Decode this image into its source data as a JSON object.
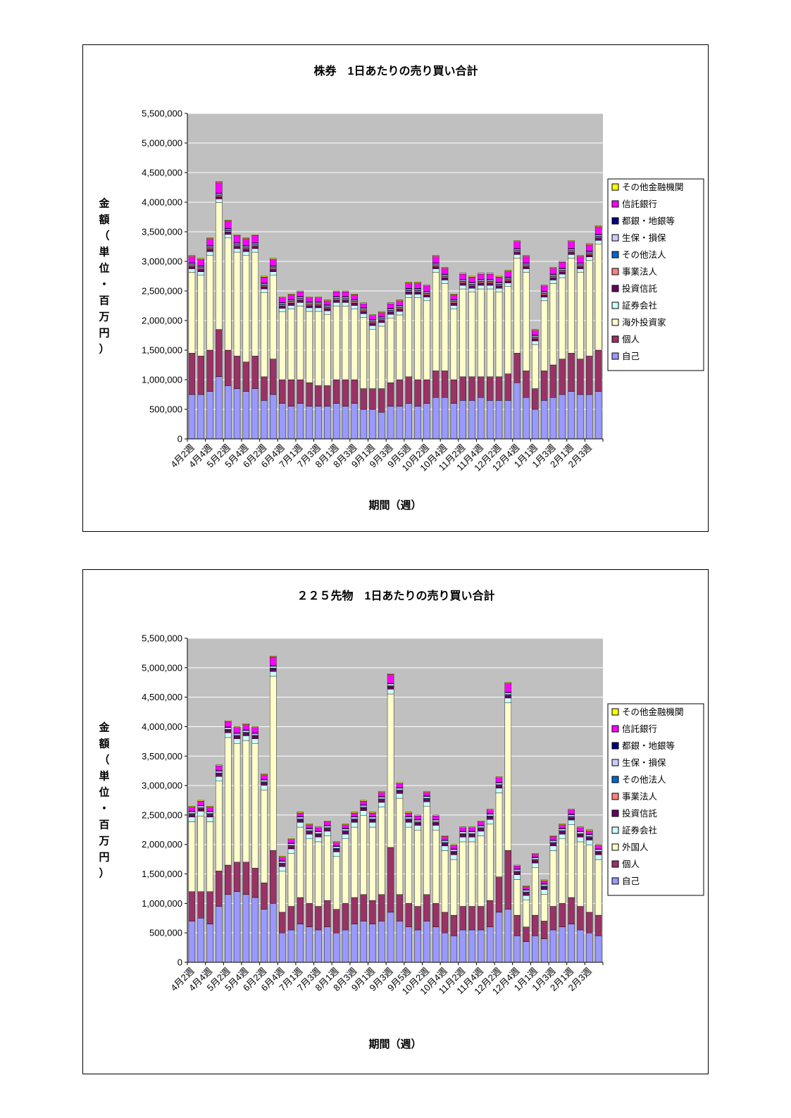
{
  "page": {
    "background": "#FFFFFF"
  },
  "chart_data": [
    {
      "type": "stacked-bar",
      "title": "株券　1日あたりの売り買い合計",
      "y_axis_title": "金額（単位・百万円）",
      "x_axis_title": "期間（週）",
      "y_min": 0,
      "y_max": 5500000,
      "y_step": 500000,
      "y_tick_labels": [
        "0",
        "500,000",
        "1,000,000",
        "1,500,000",
        "2,000,000",
        "2,500,000",
        "3,000,000",
        "3,500,000",
        "4,000,000",
        "4,500,000",
        "5,000,000",
        "5,500,000"
      ],
      "plot_background": "#C0C0C0",
      "gridline_color": "#FFFFFF",
      "legend_position": "right",
      "categories": [
        "4月2週",
        "",
        "4月4週",
        "",
        "5月2週",
        "",
        "5月4週",
        "",
        "6月2週",
        "",
        "6月4週",
        "",
        "7月1週",
        "",
        "7月3週",
        "",
        "8月1週",
        "",
        "8月3週",
        "",
        "9月1週",
        "",
        "9月3週",
        "",
        "9月5週",
        "",
        "10月2週",
        "",
        "10月4週",
        "",
        "11月2週",
        "",
        "11月4週",
        "",
        "12月2週",
        "",
        "12月4週",
        "",
        "1月1週",
        "",
        "1月3週",
        "",
        "2月1週",
        "",
        "2月3週",
        ""
      ],
      "series": [
        {
          "name": "自己",
          "color": "#9999FF",
          "values": [
            750000,
            750000,
            800000,
            1050000,
            900000,
            850000,
            800000,
            850000,
            650000,
            750000,
            600000,
            550000,
            600000,
            550000,
            550000,
            550000,
            600000,
            550000,
            600000,
            500000,
            500000,
            450000,
            550000,
            550000,
            600000,
            550000,
            600000,
            700000,
            700000,
            600000,
            650000,
            650000,
            700000,
            650000,
            650000,
            650000,
            950000,
            700000,
            500000,
            650000,
            700000,
            750000,
            800000,
            750000,
            750000,
            800000
          ]
        },
        {
          "name": "個人",
          "color": "#993366",
          "values": [
            700000,
            650000,
            700000,
            800000,
            600000,
            550000,
            500000,
            550000,
            400000,
            600000,
            400000,
            450000,
            400000,
            400000,
            350000,
            350000,
            400000,
            450000,
            400000,
            350000,
            350000,
            400000,
            400000,
            450000,
            450000,
            450000,
            400000,
            450000,
            450000,
            400000,
            400000,
            400000,
            350000,
            400000,
            400000,
            450000,
            500000,
            450000,
            350000,
            500000,
            550000,
            600000,
            650000,
            600000,
            650000,
            700000
          ]
        },
        {
          "name": "海外投資家",
          "color": "#FFFFCC",
          "values": [
            1365000,
            1365000,
            1605000,
            2145000,
            1895000,
            1755000,
            1805000,
            1755000,
            1425000,
            1415000,
            1145000,
            1195000,
            1245000,
            1205000,
            1255000,
            1205000,
            1245000,
            1245000,
            1195000,
            1205000,
            1005000,
            1055000,
            1095000,
            1095000,
            1335000,
            1385000,
            1335000,
            1665000,
            1475000,
            1195000,
            1485000,
            1435000,
            1485000,
            1485000,
            1435000,
            1475000,
            1605000,
            1665000,
            745000,
            1185000,
            1375000,
            1375000,
            1605000,
            1465000,
            1615000,
            1795000
          ]
        },
        {
          "name": "証券会社",
          "color": "#CCFFFF",
          "values": 60000
        },
        {
          "name": "投資信託",
          "color": "#660066",
          "values": 40000
        },
        {
          "name": "事業法人",
          "color": "#FF8080",
          "values": 20000
        },
        {
          "name": "その他法人",
          "color": "#0066CC",
          "values": 10000
        },
        {
          "name": "生保・損保",
          "color": "#CCCCFF",
          "values": 20000
        },
        {
          "name": "都銀・地銀等",
          "color": "#000080",
          "values": 10000
        },
        {
          "name": "信託銀行",
          "color": "#FF00FF",
          "values": [
            110000,
            110000,
            120000,
            180000,
            130000,
            120000,
            120000,
            120000,
            100000,
            110000,
            80000,
            80000,
            80000,
            70000,
            70000,
            70000,
            80000,
            80000,
            80000,
            70000,
            70000,
            70000,
            80000,
            80000,
            90000,
            90000,
            90000,
            110000,
            100000,
            80000,
            90000,
            90000,
            90000,
            90000,
            90000,
            100000,
            120000,
            110000,
            80000,
            90000,
            100000,
            100000,
            120000,
            110000,
            110000,
            130000
          ]
        },
        {
          "name": "その他金融機関",
          "color": "#FFFF00",
          "values": 15000
        }
      ]
    },
    {
      "type": "stacked-bar",
      "title": "２２５先物　1日あたりの売り買い合計",
      "y_axis_title": "金額（単位・百万円）",
      "x_axis_title": "期間（週）",
      "y_min": 0,
      "y_max": 5500000,
      "y_step": 500000,
      "y_tick_labels": [
        "0",
        "500,000",
        "1,000,000",
        "1,500,000",
        "2,000,000",
        "2,500,000",
        "3,000,000",
        "3,500,000",
        "4,000,000",
        "4,500,000",
        "5,000,000",
        "5,500,000"
      ],
      "plot_background": "#C0C0C0",
      "gridline_color": "#FFFFFF",
      "legend_position": "right",
      "categories": [
        "4月2週",
        "",
        "4月4週",
        "",
        "5月2週",
        "",
        "5月4週",
        "",
        "6月2週",
        "",
        "6月4週",
        "",
        "7月1週",
        "",
        "7月3週",
        "",
        "8月1週",
        "",
        "8月3週",
        "",
        "9月1週",
        "",
        "9月3週",
        "",
        "9月5週",
        "",
        "10月2週",
        "",
        "10月4週",
        "",
        "11月2週",
        "",
        "11月4週",
        "",
        "12月2週",
        "",
        "12月4週",
        "",
        "1月1週",
        "",
        "1月3週",
        "",
        "2月1週",
        "",
        "2月3週",
        ""
      ],
      "series": [
        {
          "name": "自己",
          "color": "#9999FF",
          "values": [
            700000,
            750000,
            650000,
            950000,
            1150000,
            1200000,
            1150000,
            1100000,
            900000,
            1000000,
            500000,
            550000,
            650000,
            600000,
            550000,
            600000,
            500000,
            550000,
            650000,
            700000,
            650000,
            700000,
            850000,
            700000,
            600000,
            550000,
            700000,
            600000,
            500000,
            450000,
            550000,
            550000,
            550000,
            600000,
            850000,
            900000,
            450000,
            350000,
            450000,
            400000,
            550000,
            600000,
            650000,
            550000,
            500000,
            450000
          ]
        },
        {
          "name": "個人",
          "color": "#993366",
          "values": [
            500000,
            450000,
            550000,
            600000,
            500000,
            500000,
            550000,
            500000,
            450000,
            900000,
            350000,
            400000,
            450000,
            400000,
            400000,
            450000,
            400000,
            450000,
            450000,
            450000,
            400000,
            450000,
            1100000,
            450000,
            400000,
            400000,
            450000,
            400000,
            350000,
            350000,
            400000,
            400000,
            400000,
            450000,
            600000,
            1000000,
            350000,
            250000,
            350000,
            300000,
            400000,
            400000,
            450000,
            400000,
            350000,
            350000
          ]
        },
        {
          "name": "外国人",
          "color": "#FFFFCC",
          "values": [
            1185000,
            1285000,
            1185000,
            1525000,
            2165000,
            2015000,
            2065000,
            2115000,
            1575000,
            2955000,
            695000,
            895000,
            1195000,
            1095000,
            1095000,
            1095000,
            895000,
            1095000,
            1195000,
            1345000,
            1245000,
            1485000,
            2605000,
            1635000,
            1295000,
            1295000,
            1495000,
            1245000,
            1045000,
            945000,
            1095000,
            1095000,
            1195000,
            1295000,
            1425000,
            2505000,
            605000,
            455000,
            805000,
            455000,
            945000,
            1095000,
            1235000,
            1095000,
            1145000,
            945000
          ]
        },
        {
          "name": "証券会社",
          "color": "#CCFFFF",
          "values": 80000
        },
        {
          "name": "投資信託",
          "color": "#660066",
          "values": 40000
        },
        {
          "name": "事業法人",
          "color": "#FF8080",
          "values": 10000
        },
        {
          "name": "その他法人",
          "color": "#0066CC",
          "values": 10000
        },
        {
          "name": "生保・損保",
          "color": "#CCCCFF",
          "values": 30000
        },
        {
          "name": "都銀・地銀等",
          "color": "#000080",
          "values": 10000
        },
        {
          "name": "信託銀行",
          "color": "#FF00FF",
          "values": [
            70000,
            70000,
            70000,
            80000,
            90000,
            90000,
            90000,
            90000,
            80000,
            150000,
            60000,
            60000,
            60000,
            60000,
            60000,
            60000,
            60000,
            60000,
            60000,
            60000,
            60000,
            70000,
            150000,
            70000,
            60000,
            60000,
            60000,
            60000,
            60000,
            60000,
            60000,
            60000,
            60000,
            60000,
            80000,
            150000,
            50000,
            50000,
            50000,
            50000,
            60000,
            60000,
            70000,
            60000,
            60000,
            60000
          ]
        },
        {
          "name": "その他金融機関",
          "color": "#FFFF00",
          "values": 15000
        }
      ]
    }
  ]
}
